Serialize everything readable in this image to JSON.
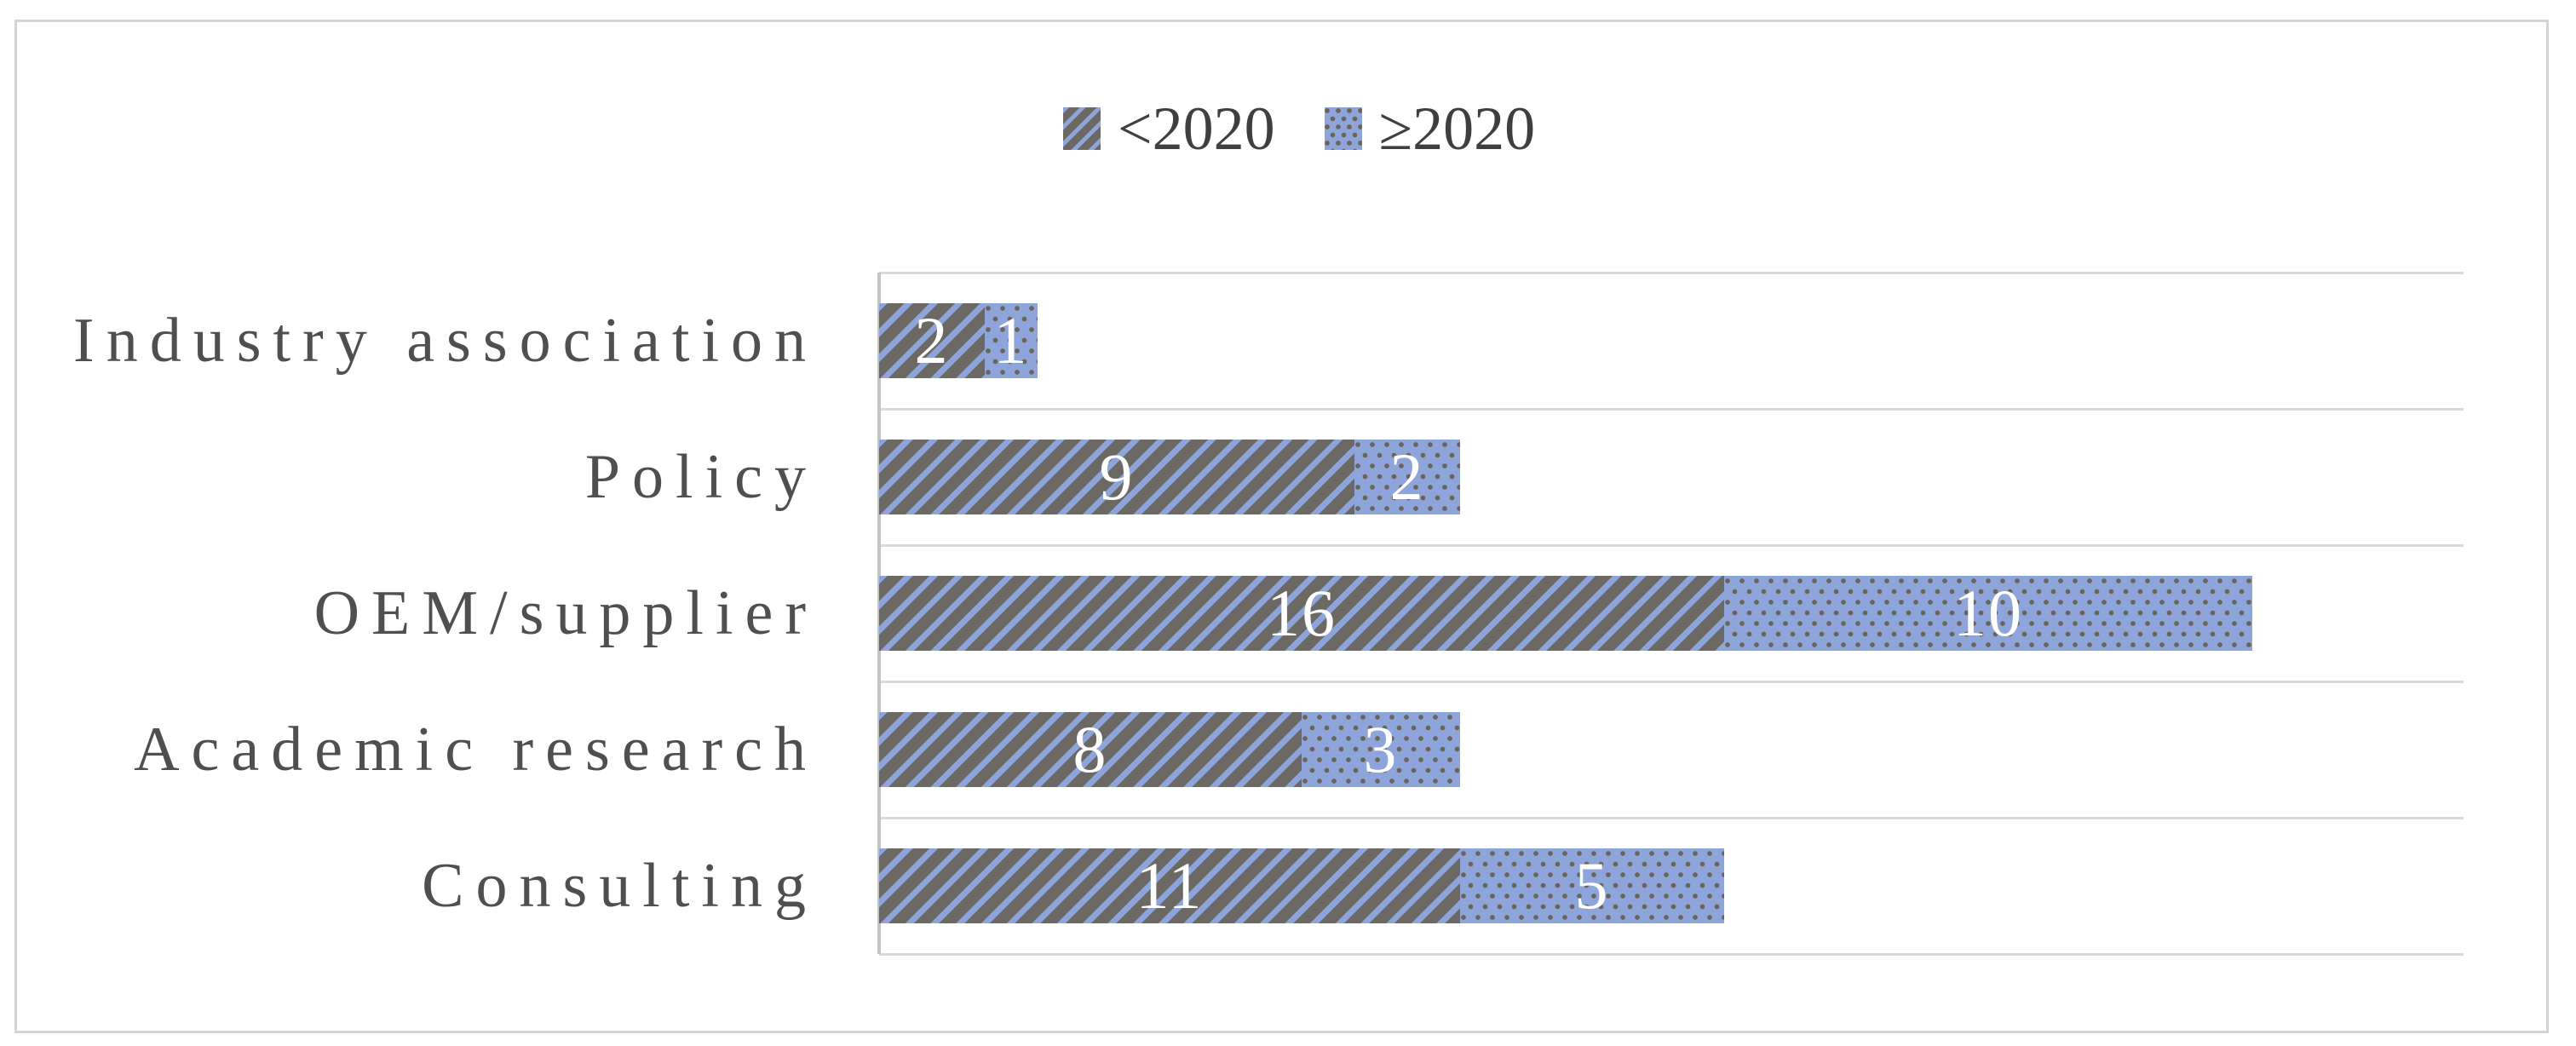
{
  "figure": {
    "description": "Horizontal stacked bar chart of source counts by publication period"
  },
  "chart_data": {
    "type": "bar",
    "orientation": "horizontal",
    "stacked": true,
    "categories": [
      "Industry association",
      "Policy",
      "OEM/supplier",
      "Academic research",
      "Consulting"
    ],
    "series": [
      {
        "name": "<2020",
        "pattern": "diagonal-stripes",
        "values": [
          2,
          9,
          16,
          8,
          11
        ]
      },
      {
        "name": "≥2020",
        "pattern": "dots",
        "values": [
          1,
          2,
          10,
          3,
          5
        ]
      }
    ],
    "data_labels": {
      "stripes": [
        "2",
        "9",
        "16",
        "8",
        "11"
      ],
      "dots": [
        "1",
        "2",
        "10",
        "3",
        "5"
      ]
    },
    "xlabel": "",
    "ylabel": "",
    "xlim": [
      0,
      30
    ],
    "grid": "horizontal-category-separators",
    "legend_position": "top-center",
    "colors": {
      "blue": "#8da5da",
      "stripe_gray": "#6c6965",
      "dot_gray": "#6b6355",
      "gridline": "#d9d9d9",
      "axis_line": "#c3c3c3",
      "frame_border": "#d4d4d4",
      "category_text": "#4f4f4f",
      "legend_text": "#3f3f3f",
      "value_label_text": "#ffffff"
    }
  }
}
